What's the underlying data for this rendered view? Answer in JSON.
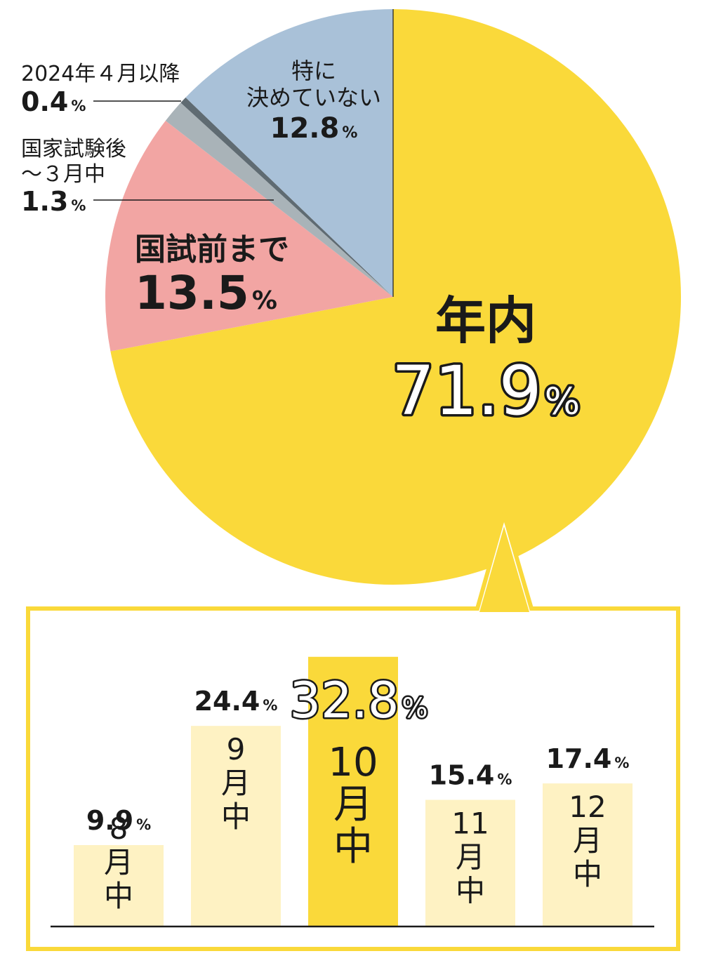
{
  "colors": {
    "year_end": "#fad93a",
    "before_exam": "#f2a5a3",
    "after_exam": "#a9b3b8",
    "after_april": "#5f6b72",
    "undecided": "#a9c1d8",
    "bar_light": "#fef2c3",
    "bar_highlight": "#fad93a",
    "frame": "#fad93a",
    "text": "#1a1a1a"
  },
  "chart_data": [
    {
      "type": "pie",
      "start": "top",
      "direction": "clockwise",
      "slices": [
        {
          "key": "year_end",
          "line1": "年内",
          "line2": "",
          "value": "71.9",
          "unit": "%",
          "color": "#fad93a"
        },
        {
          "key": "before_exam",
          "line1": "国試前まで",
          "line2": "",
          "value": "13.5",
          "unit": "%",
          "color": "#f2a5a3"
        },
        {
          "key": "after_exam",
          "line1": "国家試験後",
          "line2": "～３月中",
          "value": "1.3",
          "unit": "%",
          "color": "#a9b3b8"
        },
        {
          "key": "after_april",
          "line1": "2024年４月以降",
          "line2": "",
          "value": "0.4",
          "unit": "%",
          "color": "#5f6b72"
        },
        {
          "key": "undecided",
          "line1": "特に",
          "line2": "決めていない",
          "value": "12.8",
          "unit": "%",
          "color": "#a9c1d8"
        }
      ]
    },
    {
      "type": "bar",
      "breakdown_of": "年内",
      "unit": "%",
      "ylim": [
        0,
        35
      ],
      "categories": [
        "8",
        "9",
        "10",
        "11",
        "12"
      ],
      "category_suffix": [
        "月",
        "中"
      ],
      "values": [
        9.9,
        24.4,
        32.8,
        15.4,
        17.4
      ],
      "value_labels": [
        "9.9",
        "24.4",
        "32.8",
        "15.4",
        "17.4"
      ],
      "highlight_index": 2
    }
  ]
}
